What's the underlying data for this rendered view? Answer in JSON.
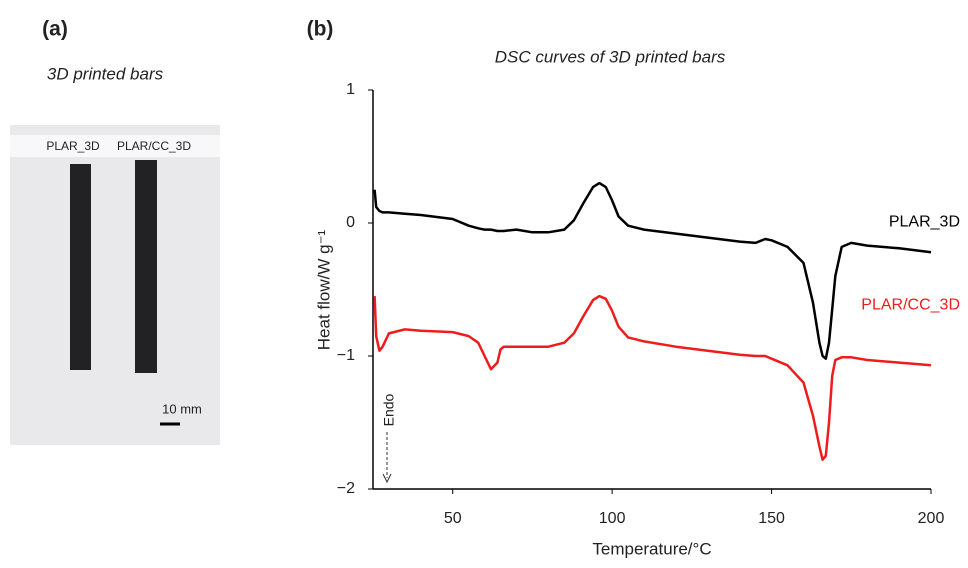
{
  "panel_a": {
    "label": "(a)",
    "title": "3D printed bars",
    "sample_labels": [
      "PLAR_3D",
      "PLAR/CC_3D"
    ],
    "scale_label": "10  mm"
  },
  "chart_data": {
    "type": "line",
    "panel_label": "(b)",
    "title": "DSC curves of 3D printed bars",
    "x_label": "Temperature/°C",
    "y_label": "Heat flow/W g⁻¹",
    "annotation": "Endo",
    "x": [
      25.5,
      26,
      27,
      28,
      30,
      35,
      40,
      50,
      55,
      58,
      60,
      62,
      64,
      65,
      66,
      70,
      75,
      80,
      85,
      88,
      91,
      94,
      96,
      98,
      100,
      102,
      105,
      110,
      120,
      130,
      140,
      145,
      148,
      150,
      155,
      160,
      163,
      165,
      166,
      167,
      168,
      169,
      170,
      172,
      175,
      180,
      190,
      200
    ],
    "series": [
      {
        "name": "PLAR_3D",
        "color": "#000000",
        "values": [
          0.25,
          0.12,
          0.09,
          0.08,
          0.08,
          0.07,
          0.06,
          0.03,
          -0.02,
          -0.04,
          -0.05,
          -0.05,
          -0.06,
          -0.06,
          -0.06,
          -0.05,
          -0.07,
          -0.07,
          -0.05,
          0.02,
          0.15,
          0.27,
          0.3,
          0.27,
          0.17,
          0.05,
          -0.02,
          -0.05,
          -0.08,
          -0.11,
          -0.14,
          -0.15,
          -0.12,
          -0.13,
          -0.18,
          -0.3,
          -0.6,
          -0.9,
          -1.0,
          -1.02,
          -0.9,
          -0.65,
          -0.4,
          -0.18,
          -0.15,
          -0.17,
          -0.19,
          -0.22
        ]
      },
      {
        "name": "PLAR/CC_3D",
        "color": "#ee1c1c",
        "values": [
          -0.55,
          -0.85,
          -0.96,
          -0.93,
          -0.83,
          -0.8,
          -0.81,
          -0.82,
          -0.85,
          -0.9,
          -1.0,
          -1.1,
          -1.05,
          -0.95,
          -0.93,
          -0.93,
          -0.93,
          -0.93,
          -0.9,
          -0.83,
          -0.7,
          -0.58,
          -0.55,
          -0.57,
          -0.66,
          -0.78,
          -0.86,
          -0.89,
          -0.93,
          -0.96,
          -0.99,
          -1.0,
          -1.0,
          -1.02,
          -1.07,
          -1.2,
          -1.45,
          -1.68,
          -1.78,
          -1.75,
          -1.5,
          -1.15,
          -1.03,
          -1.01,
          -1.01,
          -1.03,
          -1.05,
          -1.07
        ]
      }
    ],
    "xlim": [
      25,
      200
    ],
    "xticks": [
      50,
      100,
      150,
      200
    ],
    "ylim": [
      -2,
      1
    ],
    "yticks": [
      {
        "value": -2,
        "label": "−2"
      },
      {
        "value": -1,
        "label": "−1"
      },
      0,
      1
    ]
  }
}
